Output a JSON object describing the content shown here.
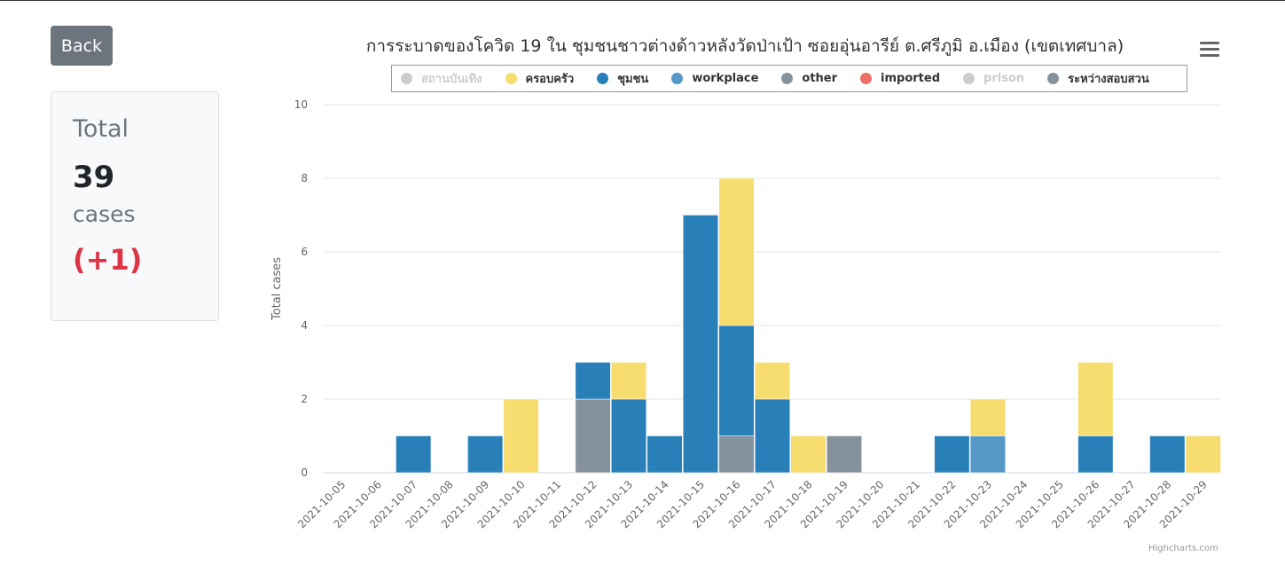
{
  "back_label": "Back",
  "summary": {
    "label": "Total",
    "count": "39",
    "unit": "cases",
    "delta": "(+1)"
  },
  "chart_title": "การระบาดของโควิด 19 ใน ชุมชนชาวต่างด้าวหลังวัดป่าเป้า ซอยอุ่นอารีย์ ต.ศรีภูมิ อ.เมือง (เขตเทศบาล)",
  "menu_icon": "hamburger-menu-icon",
  "credits": "Highcharts.com",
  "colors": {
    "family": "#f7dc6f",
    "community": "#2980b9",
    "workplace": "#5499c7",
    "other": "#85929e",
    "imported": "#ec7063",
    "entertainment": "#cccccc",
    "prison": "#cccccc",
    "investigating": "#85929e"
  },
  "chart_data": {
    "type": "bar",
    "stacked": true,
    "title": "การระบาดของโควิด 19 ใน ชุมชนชาวต่างด้าวหลังวัดป่าเป้า ซอยอุ่นอารีย์ ต.ศรีภูมิ อ.เมือง (เขตเทศบาล)",
    "ylabel": "Total cases",
    "ylim": [
      0,
      10
    ],
    "yticks": [
      0,
      2,
      4,
      6,
      8,
      10
    ],
    "grid": true,
    "legend_position": "top",
    "categories": [
      "2021-10-05",
      "2021-10-06",
      "2021-10-07",
      "2021-10-08",
      "2021-10-09",
      "2021-10-10",
      "2021-10-11",
      "2021-10-12",
      "2021-10-13",
      "2021-10-14",
      "2021-10-15",
      "2021-10-16",
      "2021-10-17",
      "2021-10-18",
      "2021-10-19",
      "2021-10-20",
      "2021-10-21",
      "2021-10-22",
      "2021-10-23",
      "2021-10-24",
      "2021-10-25",
      "2021-10-26",
      "2021-10-27",
      "2021-10-28",
      "2021-10-29"
    ],
    "series": [
      {
        "name": "สถานบันเทิง",
        "key": "entertainment",
        "visible": false,
        "values": [
          0,
          0,
          0,
          0,
          0,
          0,
          0,
          0,
          0,
          0,
          0,
          0,
          0,
          0,
          0,
          0,
          0,
          0,
          0,
          0,
          0,
          0,
          0,
          0,
          0
        ]
      },
      {
        "name": "ครอบครัว",
        "key": "family",
        "visible": true,
        "values": [
          0,
          0,
          0,
          0,
          0,
          2,
          0,
          0,
          1,
          0,
          0,
          4,
          1,
          1,
          0,
          0,
          0,
          0,
          1,
          0,
          0,
          2,
          0,
          0,
          1
        ]
      },
      {
        "name": "ชุมชน",
        "key": "community",
        "visible": true,
        "values": [
          0,
          0,
          1,
          0,
          1,
          0,
          0,
          1,
          2,
          1,
          7,
          3,
          2,
          0,
          0,
          0,
          0,
          1,
          0,
          0,
          0,
          1,
          0,
          1,
          0
        ]
      },
      {
        "name": "workplace",
        "key": "workplace",
        "visible": true,
        "values": [
          0,
          0,
          0,
          0,
          0,
          0,
          0,
          0,
          0,
          0,
          0,
          0,
          0,
          0,
          0,
          0,
          0,
          0,
          1,
          0,
          0,
          0,
          0,
          0,
          0
        ]
      },
      {
        "name": "other",
        "key": "other",
        "visible": true,
        "values": [
          0,
          0,
          0,
          0,
          0,
          0,
          0,
          0,
          0,
          0,
          0,
          0,
          0,
          0,
          0,
          0,
          0,
          0,
          0,
          0,
          0,
          0,
          0,
          0,
          0
        ]
      },
      {
        "name": "imported",
        "key": "imported",
        "visible": true,
        "values": [
          0,
          0,
          0,
          0,
          0,
          0,
          0,
          0,
          0,
          0,
          0,
          0,
          0,
          0,
          0,
          0,
          0,
          0,
          0,
          0,
          0,
          0,
          0,
          0,
          0
        ]
      },
      {
        "name": "prison",
        "key": "prison",
        "visible": false,
        "values": [
          0,
          0,
          0,
          0,
          0,
          0,
          0,
          0,
          0,
          0,
          0,
          0,
          0,
          0,
          0,
          0,
          0,
          0,
          0,
          0,
          0,
          0,
          0,
          0,
          0
        ]
      },
      {
        "name": "ระหว่างสอบสวน",
        "key": "investigating",
        "visible": true,
        "values": [
          0,
          0,
          0,
          0,
          0,
          0,
          0,
          2,
          0,
          0,
          0,
          1,
          0,
          0,
          1,
          0,
          0,
          0,
          0,
          0,
          0,
          0,
          0,
          0,
          0
        ]
      }
    ],
    "stack_order_bottom_to_top": [
      "investigating",
      "prison",
      "imported",
      "other",
      "workplace",
      "community",
      "family",
      "entertainment"
    ]
  }
}
